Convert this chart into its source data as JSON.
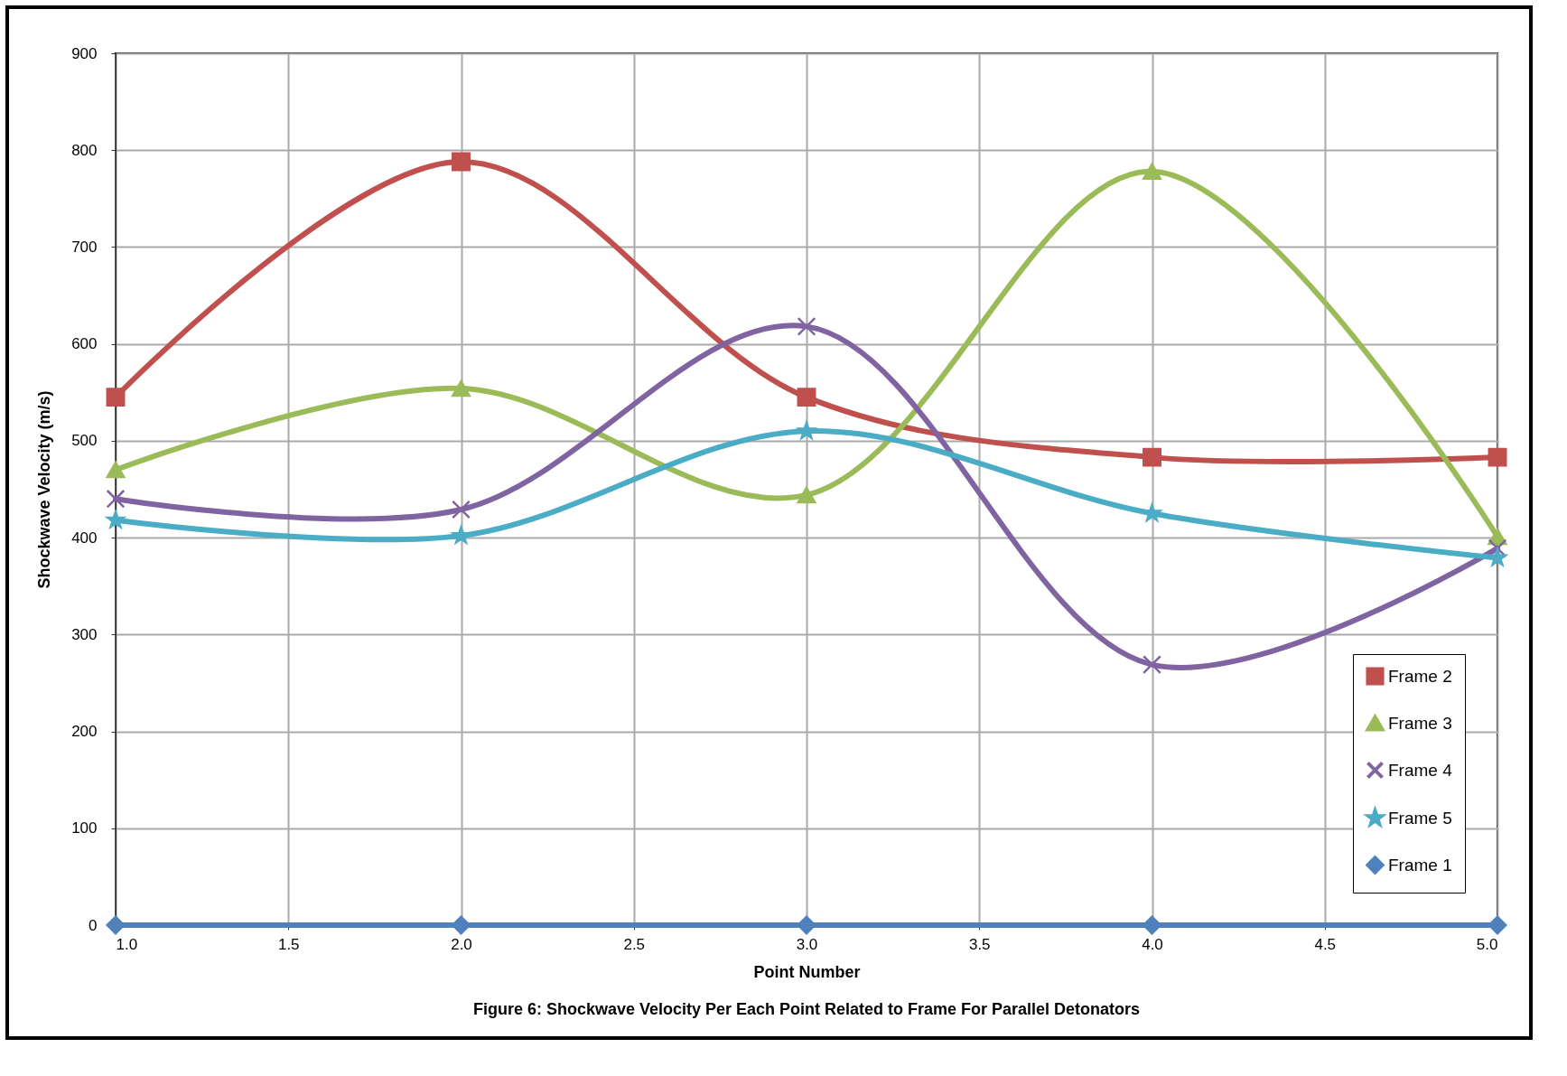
{
  "chart_data": {
    "type": "line",
    "title": "Figure 6: Shockwave Velocity Per Each Point Related to Frame For Parallel Detonators",
    "xlabel": "Point Number",
    "ylabel": "Shockwave Velocity (m/s)",
    "x": [
      1,
      2,
      3,
      4,
      5
    ],
    "series": [
      {
        "name": "Frame 2",
        "color": "#c0504d",
        "marker": "square",
        "values": [
          545,
          788,
          545,
          483,
          483
        ]
      },
      {
        "name": "Frame 3",
        "color": "#9bbb59",
        "marker": "triangle",
        "values": [
          470,
          554,
          444,
          778,
          401
        ]
      },
      {
        "name": "Frame 4",
        "color": "#8064a2",
        "marker": "cross",
        "values": [
          440,
          429,
          618,
          269,
          389
        ]
      },
      {
        "name": "Frame 5",
        "color": "#4bacc6",
        "marker": "star",
        "values": [
          418,
          402,
          510,
          425,
          379
        ]
      },
      {
        "name": "Frame 1",
        "color": "#4f81bd",
        "marker": "diamond",
        "values": [
          0,
          0,
          0,
          0,
          0
        ]
      }
    ],
    "xlim": [
      1,
      5
    ],
    "xticks": [
      {
        "value": 1,
        "label": "1.0"
      },
      {
        "value": 1.5,
        "label": "1.5"
      },
      {
        "value": 2,
        "label": "2.0"
      },
      {
        "value": 2.5,
        "label": "2.5"
      },
      {
        "value": 3,
        "label": "3.0"
      },
      {
        "value": 3.5,
        "label": "3.5"
      },
      {
        "value": 4,
        "label": "4.0"
      },
      {
        "value": 4.5,
        "label": "4.5"
      },
      {
        "value": 5,
        "label": "5.0"
      }
    ],
    "ylim": [
      0,
      900
    ],
    "yticks": [
      0,
      100,
      200,
      300,
      400,
      500,
      600,
      700,
      800,
      900
    ],
    "grid": true,
    "legend": "bottom right",
    "line_style": "solid"
  }
}
